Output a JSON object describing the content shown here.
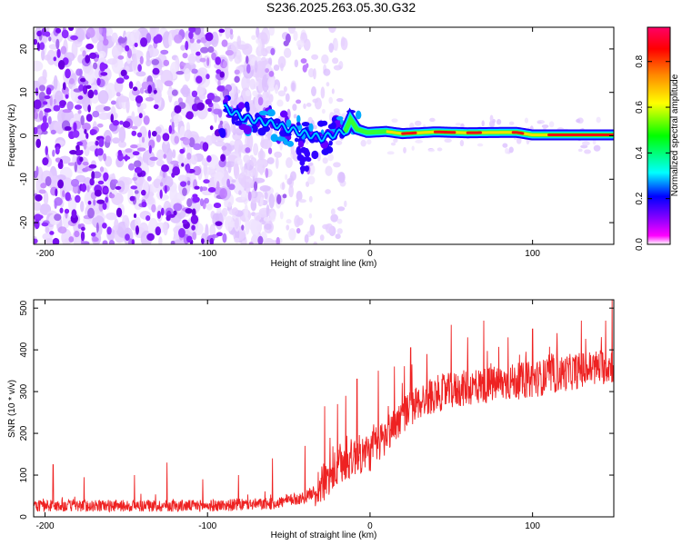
{
  "title": "S236.2025.263.05.30.G32",
  "chart_data": [
    {
      "type": "heatmap",
      "title": "S236.2025.263.05.30.G32",
      "xlabel": "Height of straight line (km)",
      "ylabel": "Frequency (Hz)",
      "xlim": [
        -207,
        150
      ],
      "ylim": [
        -25,
        25
      ],
      "xticks": [
        -200,
        -100,
        0,
        100
      ],
      "yticks": [
        -20,
        -10,
        0,
        10,
        20
      ],
      "colorbar": {
        "label": "Normalized spectral amplitude",
        "range": [
          0,
          0.95
        ],
        "ticks": [
          "0.0",
          "0.2",
          "0.4",
          "0.6",
          "0.8"
        ],
        "tick_values": [
          0,
          0.2,
          0.4,
          0.6,
          0.8
        ],
        "stops": [
          "#ffffff",
          "#ff00ff",
          "#8800ff",
          "#0000ff",
          "#00ffff",
          "#00ff00",
          "#ffff00",
          "#ff8800",
          "#ff0000",
          "#ff0066"
        ]
      },
      "signal_line": {
        "description": "Strong narrow-band signal near 0 Hz",
        "points": [
          [
            -90,
            6.5
          ],
          [
            -80,
            4.5
          ],
          [
            -70,
            3.5
          ],
          [
            -60,
            2.8
          ],
          [
            -50,
            1.5
          ],
          [
            -40,
            0.5
          ],
          [
            -30,
            -0.5
          ],
          [
            -20,
            0.5
          ],
          [
            -15,
            1.2
          ],
          [
            -12,
            3.8
          ],
          [
            -8,
            1.5
          ],
          [
            -2,
            0.8
          ],
          [
            0,
            0.8
          ],
          [
            10,
            1.0
          ],
          [
            20,
            0.5
          ],
          [
            40,
            0.9
          ],
          [
            60,
            0.7
          ],
          [
            90,
            0.8
          ],
          [
            100,
            0.2
          ],
          [
            150,
            0.2
          ]
        ]
      },
      "noise_region_x": [
        -207,
        -85
      ]
    },
    {
      "type": "line",
      "xlabel": "Height of straight line (km)",
      "ylabel": "SNR (10 * v/v)",
      "xlim": [
        -207,
        150
      ],
      "ylim": [
        0,
        520
      ],
      "xticks": [
        -200,
        -100,
        0,
        100
      ],
      "yticks": [
        0,
        100,
        200,
        300,
        400,
        500
      ],
      "color": "#ee2222",
      "trend": [
        [
          -207,
          25
        ],
        [
          -150,
          25
        ],
        [
          -100,
          25
        ],
        [
          -60,
          30
        ],
        [
          -40,
          45
        ],
        [
          -30,
          70
        ],
        [
          -20,
          110
        ],
        [
          -10,
          140
        ],
        [
          0,
          150
        ],
        [
          10,
          190
        ],
        [
          20,
          240
        ],
        [
          30,
          270
        ],
        [
          40,
          290
        ],
        [
          60,
          305
        ],
        [
          80,
          315
        ],
        [
          100,
          325
        ],
        [
          120,
          340
        ],
        [
          150,
          360
        ]
      ],
      "spikes": [
        [
          -195,
          125
        ],
        [
          -176,
          95
        ],
        [
          -145,
          100
        ],
        [
          -125,
          130
        ],
        [
          -103,
          90
        ],
        [
          -81,
          100
        ],
        [
          -60,
          140
        ],
        [
          -40,
          170
        ],
        [
          -28,
          265
        ],
        [
          -20,
          270
        ],
        [
          -15,
          290
        ],
        [
          -8,
          330
        ],
        [
          5,
          350
        ],
        [
          15,
          360
        ],
        [
          25,
          405
        ],
        [
          35,
          390
        ],
        [
          50,
          460
        ],
        [
          60,
          430
        ],
        [
          70,
          470
        ],
        [
          85,
          430
        ],
        [
          100,
          450
        ],
        [
          115,
          440
        ],
        [
          130,
          470
        ],
        [
          145,
          470
        ],
        [
          149,
          520
        ]
      ]
    }
  ]
}
